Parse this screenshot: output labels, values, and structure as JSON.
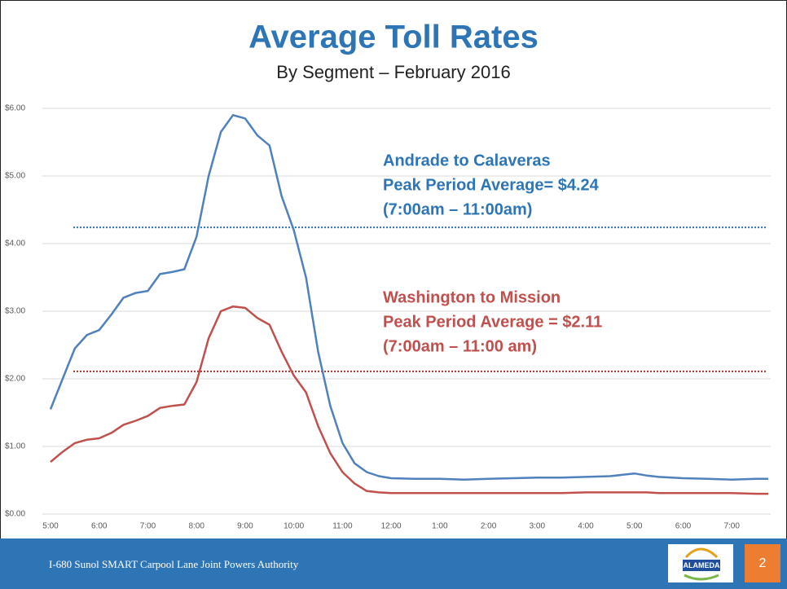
{
  "chart_data": {
    "type": "line",
    "title": "Average Toll Rates",
    "subtitle": "By Segment – February 2016",
    "x": [
      5,
      5.25,
      5.5,
      5.75,
      6,
      6.25,
      6.5,
      6.75,
      7,
      7.25,
      7.5,
      7.75,
      8,
      8.25,
      8.5,
      8.75,
      9,
      9.25,
      9.5,
      9.75,
      10,
      10.25,
      10.5,
      10.75,
      11,
      11.25,
      11.5,
      11.75,
      12,
      12.5,
      13,
      13.5,
      14,
      14.5,
      15,
      15.5,
      16,
      16.5,
      17,
      17.25,
      17.5,
      18,
      18.5,
      19,
      19.5,
      19.75
    ],
    "series": [
      {
        "name": "Andrade to Calaveras",
        "color": "#4f81bd",
        "values": [
          1.55,
          2.0,
          2.45,
          2.65,
          2.72,
          2.95,
          3.2,
          3.27,
          3.3,
          3.55,
          3.58,
          3.62,
          4.1,
          5.0,
          5.65,
          5.9,
          5.85,
          5.6,
          5.45,
          4.7,
          4.2,
          3.5,
          2.4,
          1.6,
          1.05,
          0.75,
          0.62,
          0.56,
          0.53,
          0.52,
          0.52,
          0.51,
          0.52,
          0.53,
          0.54,
          0.54,
          0.55,
          0.56,
          0.6,
          0.57,
          0.55,
          0.53,
          0.52,
          0.51,
          0.52,
          0.52
        ]
      },
      {
        "name": "Washington to Mission",
        "color": "#c0504d",
        "values": [
          0.77,
          0.92,
          1.05,
          1.1,
          1.12,
          1.2,
          1.32,
          1.38,
          1.45,
          1.57,
          1.6,
          1.62,
          1.95,
          2.6,
          3.0,
          3.07,
          3.05,
          2.9,
          2.8,
          2.4,
          2.05,
          1.8,
          1.3,
          0.9,
          0.62,
          0.45,
          0.34,
          0.32,
          0.31,
          0.31,
          0.31,
          0.31,
          0.31,
          0.31,
          0.31,
          0.31,
          0.32,
          0.32,
          0.32,
          0.32,
          0.31,
          0.31,
          0.31,
          0.31,
          0.3,
          0.3
        ]
      }
    ],
    "reference_lines": [
      {
        "value": 4.24,
        "color": "#2e75b6",
        "style": "dotted"
      },
      {
        "value": 2.11,
        "color": "#a5342f",
        "style": "dotted"
      }
    ],
    "annotations": [
      {
        "color": "#2e75b6",
        "lines": [
          "Andrade to Calaveras",
          "Peak Period Average= $4.24",
          "(7:00am – 11:00am)"
        ]
      },
      {
        "color": "#c0504d",
        "lines": [
          "Washington to Mission",
          "Peak Period Average = $2.11",
          "(7:00am – 11:00 am)"
        ]
      }
    ],
    "xlim": [
      5,
      19.8
    ],
    "xticks": [
      {
        "value": 5,
        "label": "5:00"
      },
      {
        "value": 6,
        "label": "6:00"
      },
      {
        "value": 7,
        "label": "7:00"
      },
      {
        "value": 8,
        "label": "8:00"
      },
      {
        "value": 9,
        "label": "9:00"
      },
      {
        "value": 10,
        "label": "10:00"
      },
      {
        "value": 11,
        "label": "11:00"
      },
      {
        "value": 12,
        "label": "12:00"
      },
      {
        "value": 13,
        "label": "1:00"
      },
      {
        "value": 14,
        "label": "2:00"
      },
      {
        "value": 15,
        "label": "3:00"
      },
      {
        "value": 16,
        "label": "4:00"
      },
      {
        "value": 17,
        "label": "5:00"
      },
      {
        "value": 18,
        "label": "6:00"
      },
      {
        "value": 19,
        "label": "7:00"
      }
    ],
    "ylim": [
      0,
      6
    ],
    "yticks": [
      {
        "value": 0,
        "label": "$0.00"
      },
      {
        "value": 1,
        "label": "$1.00"
      },
      {
        "value": 2,
        "label": "$2.00"
      },
      {
        "value": 3,
        "label": "$3.00"
      },
      {
        "value": 4,
        "label": "$4.00"
      },
      {
        "value": 5,
        "label": "$5.00"
      },
      {
        "value": 6,
        "label": "$6.00"
      }
    ],
    "grid": true
  },
  "footer": {
    "text": "I-680 Sunol SMART Carpool Lane Joint Powers Authority",
    "logo": "ALAMEDA",
    "page_number": "2"
  }
}
